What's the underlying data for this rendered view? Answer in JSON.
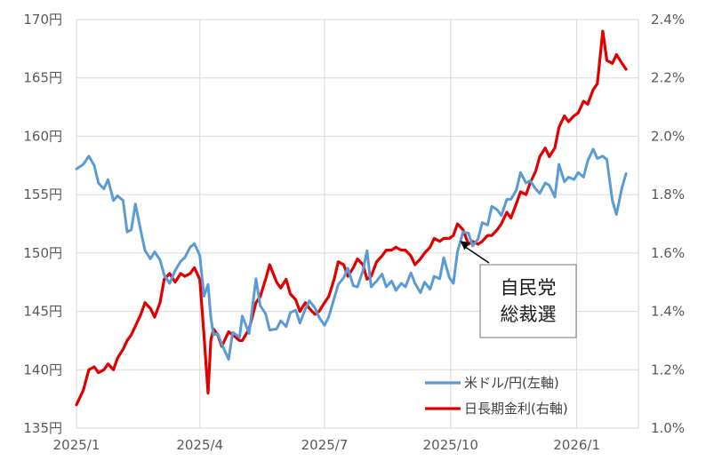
{
  "chart_data": {
    "type": "line",
    "title": "",
    "xlabel": "",
    "ylabel": "",
    "x_ticks": [
      "2025/1",
      "2025/4",
      "2025/7",
      "2025/10",
      "2026/1"
    ],
    "y_left": {
      "range": [
        135,
        170
      ],
      "ticks": [
        "135円",
        "140円",
        "145円",
        "150円",
        "155円",
        "160円",
        "165円",
        "170円"
      ]
    },
    "y_right": {
      "range": [
        1.0,
        2.4
      ],
      "ticks": [
        "1.0%",
        "1.2%",
        "1.4%",
        "1.6%",
        "1.8%",
        "2.0%",
        "2.2%",
        "2.4%"
      ]
    },
    "grid": true,
    "legend_position": "bottom-right",
    "series": [
      {
        "name": "米ドル/円(左軸)",
        "axis": "left",
        "color": "#5b9bd5",
        "points": [
          [
            "2025-01-01",
            157.2
          ],
          [
            "2025-01-06",
            157.6
          ],
          [
            "2025-01-10",
            158.3
          ],
          [
            "2025-01-14",
            157.5
          ],
          [
            "2025-01-17",
            156.0
          ],
          [
            "2025-01-21",
            155.5
          ],
          [
            "2025-01-24",
            156.3
          ],
          [
            "2025-01-28",
            154.5
          ],
          [
            "2025-01-31",
            154.9
          ],
          [
            "2025-02-04",
            154.5
          ],
          [
            "2025-02-07",
            151.8
          ],
          [
            "2025-02-10",
            152.0
          ],
          [
            "2025-02-13",
            154.2
          ],
          [
            "2025-02-17",
            151.9
          ],
          [
            "2025-02-20",
            150.2
          ],
          [
            "2025-02-24",
            149.5
          ],
          [
            "2025-02-27",
            150.1
          ],
          [
            "2025-03-03",
            149.4
          ],
          [
            "2025-03-06",
            148.1
          ],
          [
            "2025-03-10",
            147.4
          ],
          [
            "2025-03-14",
            148.5
          ],
          [
            "2025-03-18",
            149.3
          ],
          [
            "2025-03-21",
            149.6
          ],
          [
            "2025-03-25",
            150.5
          ],
          [
            "2025-03-28",
            150.8
          ],
          [
            "2025-04-01",
            149.8
          ],
          [
            "2025-04-04",
            146.3
          ],
          [
            "2025-04-07",
            147.3
          ],
          [
            "2025-04-09",
            144.5
          ],
          [
            "2025-04-11",
            143.0
          ],
          [
            "2025-04-14",
            143.1
          ],
          [
            "2025-04-17",
            142.2
          ],
          [
            "2025-04-22",
            140.9
          ],
          [
            "2025-04-25",
            143.2
          ],
          [
            "2025-04-30",
            142.8
          ],
          [
            "2025-05-02",
            144.6
          ],
          [
            "2025-05-07",
            143.1
          ],
          [
            "2025-05-12",
            147.8
          ],
          [
            "2025-05-15",
            145.5
          ],
          [
            "2025-05-19",
            144.8
          ],
          [
            "2025-05-22",
            143.4
          ],
          [
            "2025-05-27",
            143.5
          ],
          [
            "2025-05-30",
            144.2
          ],
          [
            "2025-06-03",
            143.7
          ],
          [
            "2025-06-06",
            144.9
          ],
          [
            "2025-06-10",
            145.1
          ],
          [
            "2025-06-13",
            144.0
          ],
          [
            "2025-06-17",
            145.2
          ],
          [
            "2025-06-20",
            145.9
          ],
          [
            "2025-06-24",
            145.3
          ],
          [
            "2025-06-27",
            144.5
          ],
          [
            "2025-07-01",
            143.8
          ],
          [
            "2025-07-04",
            144.5
          ],
          [
            "2025-07-08",
            146.1
          ],
          [
            "2025-07-11",
            147.3
          ],
          [
            "2025-07-15",
            147.9
          ],
          [
            "2025-07-18",
            148.7
          ],
          [
            "2025-07-22",
            147.2
          ],
          [
            "2025-07-25",
            147.1
          ],
          [
            "2025-07-29",
            148.5
          ],
          [
            "2025-08-01",
            150.2
          ],
          [
            "2025-08-04",
            147.1
          ],
          [
            "2025-08-08",
            147.6
          ],
          [
            "2025-08-12",
            148.2
          ],
          [
            "2025-08-15",
            147.1
          ],
          [
            "2025-08-19",
            147.6
          ],
          [
            "2025-08-22",
            146.8
          ],
          [
            "2025-08-26",
            147.4
          ],
          [
            "2025-08-29",
            147.1
          ],
          [
            "2025-09-02",
            148.3
          ],
          [
            "2025-09-05",
            147.4
          ],
          [
            "2025-09-09",
            146.6
          ],
          [
            "2025-09-12",
            147.5
          ],
          [
            "2025-09-16",
            146.9
          ],
          [
            "2025-09-19",
            148.0
          ],
          [
            "2025-09-23",
            147.8
          ],
          [
            "2025-09-26",
            149.6
          ],
          [
            "2025-09-30",
            147.9
          ],
          [
            "2025-10-03",
            147.4
          ],
          [
            "2025-10-06",
            150.1
          ],
          [
            "2025-10-10",
            151.8
          ],
          [
            "2025-10-14",
            151.7
          ],
          [
            "2025-10-17",
            150.6
          ],
          [
            "2025-10-21",
            151.2
          ],
          [
            "2025-10-24",
            152.6
          ],
          [
            "2025-10-28",
            152.4
          ],
          [
            "2025-10-31",
            154.0
          ],
          [
            "2025-11-04",
            153.7
          ],
          [
            "2025-11-07",
            153.2
          ],
          [
            "2025-11-11",
            154.6
          ],
          [
            "2025-11-14",
            154.6
          ],
          [
            "2025-11-18",
            155.4
          ],
          [
            "2025-11-21",
            156.9
          ],
          [
            "2025-11-25",
            156.0
          ],
          [
            "2025-11-28",
            156.2
          ],
          [
            "2025-12-02",
            155.5
          ],
          [
            "2025-12-05",
            155.1
          ],
          [
            "2025-12-09",
            156.0
          ],
          [
            "2025-12-12",
            155.8
          ],
          [
            "2025-12-16",
            154.8
          ],
          [
            "2025-12-19",
            157.6
          ],
          [
            "2025-12-23",
            156.1
          ],
          [
            "2025-12-26",
            156.5
          ],
          [
            "2025-12-30",
            156.3
          ],
          [
            "2026-01-02",
            156.9
          ],
          [
            "2026-01-06",
            156.5
          ],
          [
            "2026-01-09",
            157.9
          ],
          [
            "2026-01-13",
            158.9
          ],
          [
            "2026-01-16",
            158.1
          ],
          [
            "2026-01-20",
            158.3
          ],
          [
            "2026-01-23",
            158.0
          ],
          [
            "2026-01-27",
            154.5
          ],
          [
            "2026-01-30",
            153.3
          ],
          [
            "2026-02-03",
            155.6
          ],
          [
            "2026-02-06",
            156.8
          ]
        ]
      },
      {
        "name": "日長期金利(右軸)",
        "axis": "right",
        "color": "#e00000",
        "points": [
          [
            "2025-01-01",
            1.08
          ],
          [
            "2025-01-06",
            1.13
          ],
          [
            "2025-01-10",
            1.2
          ],
          [
            "2025-01-14",
            1.21
          ],
          [
            "2025-01-17",
            1.19
          ],
          [
            "2025-01-21",
            1.2
          ],
          [
            "2025-01-24",
            1.22
          ],
          [
            "2025-01-28",
            1.2
          ],
          [
            "2025-01-31",
            1.24
          ],
          [
            "2025-02-04",
            1.27
          ],
          [
            "2025-02-07",
            1.3
          ],
          [
            "2025-02-10",
            1.32
          ],
          [
            "2025-02-13",
            1.35
          ],
          [
            "2025-02-17",
            1.39
          ],
          [
            "2025-02-20",
            1.43
          ],
          [
            "2025-02-24",
            1.41
          ],
          [
            "2025-02-27",
            1.38
          ],
          [
            "2025-03-03",
            1.43
          ],
          [
            "2025-03-06",
            1.51
          ],
          [
            "2025-03-10",
            1.53
          ],
          [
            "2025-03-14",
            1.5
          ],
          [
            "2025-03-18",
            1.53
          ],
          [
            "2025-03-21",
            1.52
          ],
          [
            "2025-03-25",
            1.53
          ],
          [
            "2025-03-28",
            1.55
          ],
          [
            "2025-04-01",
            1.51
          ],
          [
            "2025-04-04",
            1.32
          ],
          [
            "2025-04-07",
            1.12
          ],
          [
            "2025-04-09",
            1.3
          ],
          [
            "2025-04-11",
            1.34
          ],
          [
            "2025-04-14",
            1.32
          ],
          [
            "2025-04-17",
            1.28
          ],
          [
            "2025-04-22",
            1.33
          ],
          [
            "2025-04-25",
            1.32
          ],
          [
            "2025-04-30",
            1.3
          ],
          [
            "2025-05-02",
            1.3
          ],
          [
            "2025-05-07",
            1.34
          ],
          [
            "2025-05-12",
            1.43
          ],
          [
            "2025-05-15",
            1.45
          ],
          [
            "2025-05-19",
            1.51
          ],
          [
            "2025-05-22",
            1.56
          ],
          [
            "2025-05-27",
            1.5
          ],
          [
            "2025-05-30",
            1.48
          ],
          [
            "2025-06-03",
            1.51
          ],
          [
            "2025-06-06",
            1.46
          ],
          [
            "2025-06-10",
            1.44
          ],
          [
            "2025-06-13",
            1.4
          ],
          [
            "2025-06-17",
            1.43
          ],
          [
            "2025-06-20",
            1.41
          ],
          [
            "2025-06-24",
            1.39
          ],
          [
            "2025-06-27",
            1.4
          ],
          [
            "2025-07-01",
            1.43
          ],
          [
            "2025-07-04",
            1.45
          ],
          [
            "2025-07-08",
            1.51
          ],
          [
            "2025-07-11",
            1.57
          ],
          [
            "2025-07-15",
            1.56
          ],
          [
            "2025-07-18",
            1.52
          ],
          [
            "2025-07-22",
            1.55
          ],
          [
            "2025-07-25",
            1.58
          ],
          [
            "2025-07-29",
            1.56
          ],
          [
            "2025-08-01",
            1.51
          ],
          [
            "2025-08-04",
            1.52
          ],
          [
            "2025-08-08",
            1.57
          ],
          [
            "2025-08-12",
            1.59
          ],
          [
            "2025-08-15",
            1.61
          ],
          [
            "2025-08-19",
            1.61
          ],
          [
            "2025-08-22",
            1.62
          ],
          [
            "2025-08-26",
            1.61
          ],
          [
            "2025-08-29",
            1.61
          ],
          [
            "2025-09-02",
            1.59
          ],
          [
            "2025-09-05",
            1.56
          ],
          [
            "2025-09-09",
            1.58
          ],
          [
            "2025-09-12",
            1.6
          ],
          [
            "2025-09-16",
            1.62
          ],
          [
            "2025-09-19",
            1.65
          ],
          [
            "2025-09-23",
            1.64
          ],
          [
            "2025-09-26",
            1.65
          ],
          [
            "2025-09-30",
            1.65
          ],
          [
            "2025-10-03",
            1.66
          ],
          [
            "2025-10-06",
            1.7
          ],
          [
            "2025-10-10",
            1.68
          ],
          [
            "2025-10-14",
            1.63
          ],
          [
            "2025-10-17",
            1.64
          ],
          [
            "2025-10-21",
            1.63
          ],
          [
            "2025-10-24",
            1.64
          ],
          [
            "2025-10-28",
            1.66
          ],
          [
            "2025-10-31",
            1.66
          ],
          [
            "2025-11-04",
            1.68
          ],
          [
            "2025-11-07",
            1.7
          ],
          [
            "2025-11-11",
            1.74
          ],
          [
            "2025-11-14",
            1.72
          ],
          [
            "2025-11-18",
            1.77
          ],
          [
            "2025-11-21",
            1.81
          ],
          [
            "2025-11-25",
            1.8
          ],
          [
            "2025-11-28",
            1.84
          ],
          [
            "2025-12-02",
            1.88
          ],
          [
            "2025-12-05",
            1.93
          ],
          [
            "2025-12-09",
            1.96
          ],
          [
            "2025-12-12",
            1.93
          ],
          [
            "2025-12-16",
            1.96
          ],
          [
            "2025-12-19",
            2.03
          ],
          [
            "2025-12-23",
            2.07
          ],
          [
            "2025-12-26",
            2.05
          ],
          [
            "2025-12-30",
            2.07
          ],
          [
            "2026-01-02",
            2.08
          ],
          [
            "2026-01-06",
            2.12
          ],
          [
            "2026-01-09",
            2.11
          ],
          [
            "2026-01-13",
            2.16
          ],
          [
            "2026-01-16",
            2.18
          ],
          [
            "2026-01-20",
            2.36
          ],
          [
            "2026-01-23",
            2.26
          ],
          [
            "2026-01-27",
            2.25
          ],
          [
            "2026-01-30",
            2.28
          ],
          [
            "2026-02-03",
            2.25
          ],
          [
            "2026-02-06",
            2.23
          ]
        ]
      }
    ],
    "annotations": [
      {
        "lines": [
          "自民党",
          "総裁選"
        ],
        "date": "2025-10-04",
        "value_left": 151.5
      }
    ]
  }
}
